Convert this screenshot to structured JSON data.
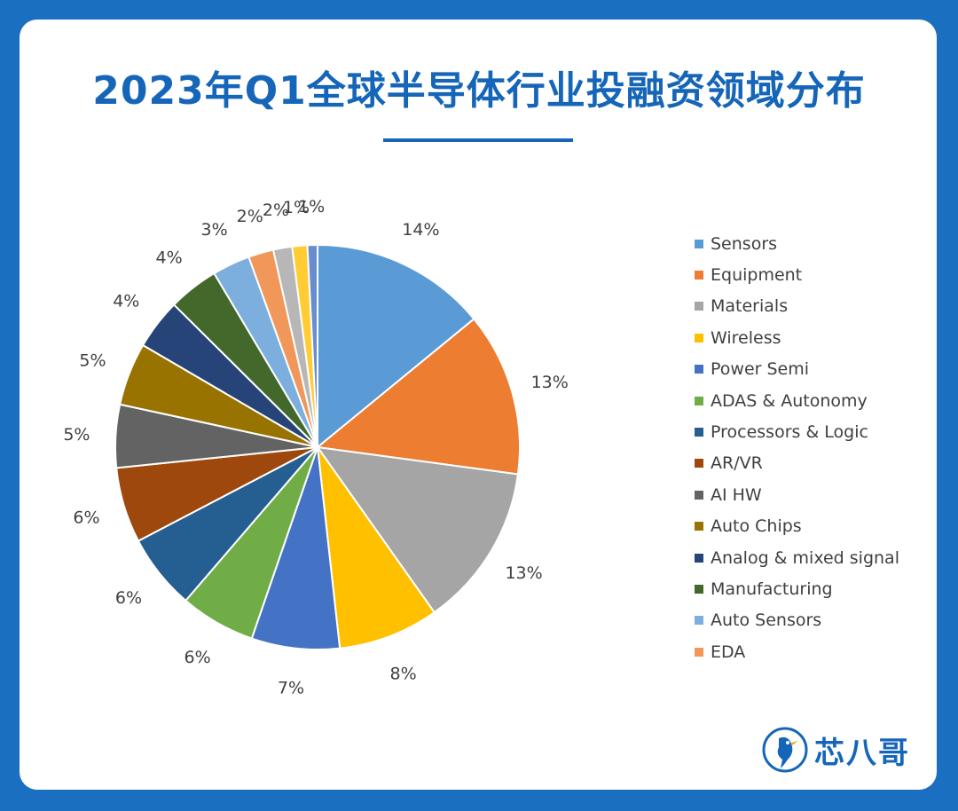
{
  "chart_data": {
    "type": "pie",
    "title": "2023年Q1全球半导体行业投融资领域分布",
    "start": "top, clockwise",
    "slices": [
      {
        "label": "Sensors",
        "value": 14,
        "value_label": "14%",
        "color": "#5b9bd5"
      },
      {
        "label": "Equipment",
        "value": 13,
        "value_label": "13%",
        "color": "#ed7d31"
      },
      {
        "label": "Materials",
        "value": 13,
        "value_label": "13%",
        "color": "#a5a5a5"
      },
      {
        "label": "Wireless",
        "value": 8,
        "value_label": "8%",
        "color": "#ffc000"
      },
      {
        "label": "Power Semi",
        "value": 7,
        "value_label": "7%",
        "color": "#4472c4"
      },
      {
        "label": "ADAS & Autonomy",
        "value": 6,
        "value_label": "6%",
        "color": "#70ad47"
      },
      {
        "label": "Processors & Logic",
        "value": 6,
        "value_label": "6%",
        "color": "#255e91"
      },
      {
        "label": "AR/VR",
        "value": 6,
        "value_label": "6%",
        "color": "#9e480e"
      },
      {
        "label": "AI HW",
        "value": 5,
        "value_label": "5%",
        "color": "#636363"
      },
      {
        "label": "Auto Chips",
        "value": 5,
        "value_label": "5%",
        "color": "#997300"
      },
      {
        "label": "Analog & mixed signal",
        "value": 4,
        "value_label": "4%",
        "color": "#264478"
      },
      {
        "label": "Manufacturing",
        "value": 4,
        "value_label": "4%",
        "color": "#43682b"
      },
      {
        "label": "Auto Sensors",
        "value": 3,
        "value_label": "3%",
        "color": "#7cafdd"
      },
      {
        "label": "EDA",
        "value": 2,
        "value_label": "2%",
        "color": "#f1975a"
      },
      {
        "label": "",
        "value": 1.5,
        "value_label": "2%",
        "color": "#b7b7b7"
      },
      {
        "label": "",
        "value": 1.2,
        "value_label": "1%",
        "color": "#ffcd33"
      },
      {
        "label": "",
        "value": 0.8,
        "value_label": "1%",
        "color": "#698ed0"
      }
    ],
    "legend": [
      "Sensors",
      "Equipment",
      "Materials",
      "Wireless",
      "Power Semi",
      "ADAS & Autonomy",
      "Processors & Logic",
      "AR/VR",
      "AI HW",
      "Auto Chips",
      "Analog & mixed signal",
      "Manufacturing",
      "Auto Sensors",
      "EDA"
    ]
  },
  "brand": {
    "name": "芯八哥",
    "primary_color": "#1565b8"
  }
}
